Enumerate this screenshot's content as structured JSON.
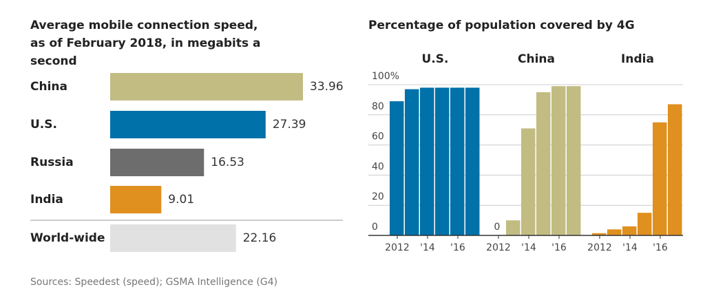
{
  "chart_data": [
    {
      "type": "hbar",
      "title": "Average mobile connection speed, as of February 2018, in megabits a second",
      "categories": [
        "China",
        "U.S.",
        "Russia",
        "India",
        "World-wide"
      ],
      "values": [
        33.96,
        27.39,
        16.53,
        9.01,
        22.16
      ],
      "colors": [
        "#c2bc83",
        "#0071a9",
        "#6d6d6d",
        "#e0901f",
        "#e1e1e1"
      ]
    },
    {
      "type": "panel-bar",
      "title": "Percentage of population covered by 4G",
      "x": [
        2012,
        2013,
        2014,
        2015,
        2016,
        2017
      ],
      "xticks": [
        2012,
        {
          "value": 2014,
          "label": "'14"
        },
        {
          "value": 2016,
          "label": "'16"
        }
      ],
      "ylim": [
        0,
        100
      ],
      "yticks": [
        0,
        20,
        40,
        60,
        80,
        {
          "value": 100,
          "label": "100%"
        }
      ],
      "grid": true,
      "series": [
        {
          "name": "U.S.",
          "color": "#0071a9",
          "values": [
            89,
            97,
            98,
            98,
            98,
            98
          ]
        },
        {
          "name": "China",
          "color": "#c2bc83",
          "values": [
            0,
            10,
            71,
            95,
            99,
            99
          ]
        },
        {
          "name": "India",
          "color": "#e0901f",
          "values": [
            1.5,
            4,
            6,
            15,
            75,
            87
          ]
        }
      ]
    }
  ],
  "source": "Sources: Speedest (speed); GSMA Intelligence (G4)"
}
